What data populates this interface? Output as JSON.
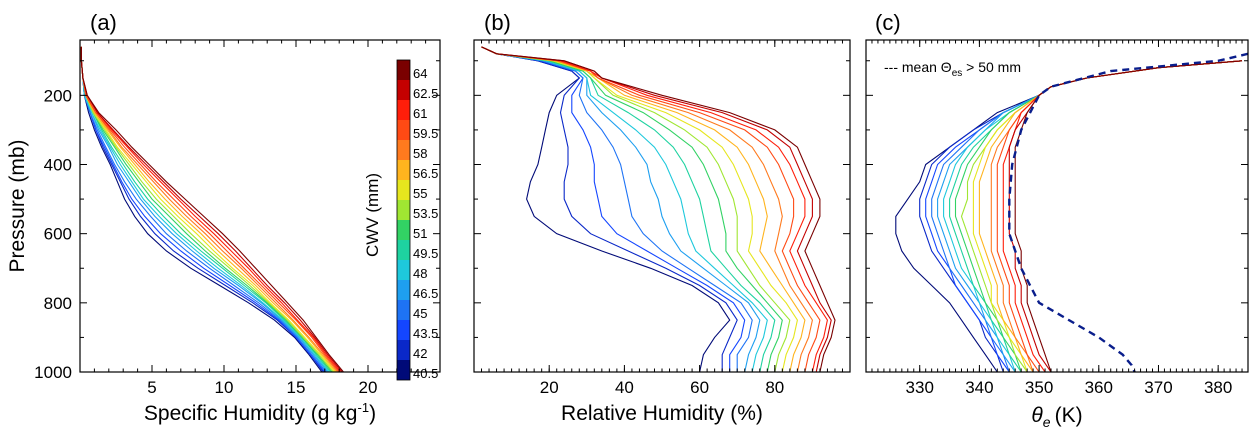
{
  "colorbar": {
    "title": "CWV (mm)",
    "labels": [
      "64",
      "62.5",
      "61",
      "59.5",
      "58",
      "56.5",
      "55",
      "53.5",
      "51",
      "49.5",
      "48",
      "46.5",
      "45",
      "43.5",
      "42",
      "40.5"
    ],
    "colors": [
      "#7a0000",
      "#c40000",
      "#ff1e0a",
      "#ff4a14",
      "#ff7a1e",
      "#ffb41e",
      "#e6e61e",
      "#a0e632",
      "#32d264",
      "#1ed2a0",
      "#1ec8dc",
      "#1e9ff0",
      "#1e73f5",
      "#1446ff",
      "#0a28c8",
      "#000a78"
    ]
  },
  "chart_data": [
    {
      "panel_label": "(a)",
      "type": "line",
      "xlabel": "Specific Humidity (g kg",
      "xlabel_sup": "-1",
      "xlabel_close": ")",
      "ylabel": "Pressure (mb)",
      "xlim": [
        0,
        25
      ],
      "ylim": [
        1000,
        40
      ],
      "y_reversed": true,
      "x_ticks": [
        "5",
        "10",
        "15",
        "20"
      ],
      "x_tick_values": [
        5,
        10,
        15,
        20
      ],
      "y_ticks": [
        "200",
        "400",
        "600",
        "800",
        "1000"
      ],
      "y_tick_values": [
        200,
        400,
        600,
        800,
        1000
      ],
      "pressure_levels": [
        60,
        100,
        150,
        200,
        250,
        300,
        350,
        400,
        450,
        500,
        550,
        600,
        650,
        700,
        750,
        800,
        850,
        900,
        950,
        1000
      ],
      "series_x": [
        [
          0.1,
          0.1,
          0.2,
          0.5,
          1.3,
          2.5,
          3.6,
          4.8,
          6.0,
          7.3,
          8.6,
          9.9,
          11.1,
          12.2,
          13.3,
          14.4,
          15.5,
          16.4,
          17.3,
          18.3
        ],
        [
          0.1,
          0.1,
          0.2,
          0.5,
          1.2,
          2.3,
          3.4,
          4.6,
          5.8,
          7.0,
          8.3,
          9.6,
          10.8,
          11.9,
          13.0,
          14.2,
          15.3,
          16.3,
          17.2,
          18.2
        ],
        [
          0.1,
          0.1,
          0.2,
          0.5,
          1.2,
          2.2,
          3.3,
          4.4,
          5.6,
          6.8,
          8.0,
          9.3,
          10.5,
          11.7,
          12.8,
          14.0,
          15.1,
          16.2,
          17.1,
          18.1
        ],
        [
          0.1,
          0.1,
          0.2,
          0.4,
          1.1,
          2.1,
          3.1,
          4.2,
          5.3,
          6.5,
          7.7,
          9.0,
          10.2,
          11.4,
          12.6,
          13.8,
          15.0,
          16.1,
          17.0,
          18.0
        ],
        [
          0.1,
          0.1,
          0.2,
          0.4,
          1.1,
          2.0,
          2.9,
          4.0,
          5.1,
          6.2,
          7.4,
          8.7,
          9.9,
          11.2,
          12.4,
          13.6,
          14.8,
          15.9,
          16.9,
          17.9
        ],
        [
          0.1,
          0.1,
          0.2,
          0.4,
          1.0,
          1.9,
          2.8,
          3.8,
          4.8,
          5.9,
          7.1,
          8.4,
          9.6,
          10.9,
          12.2,
          13.4,
          14.7,
          15.8,
          16.8,
          17.8
        ],
        [
          0.1,
          0.1,
          0.2,
          0.4,
          1.0,
          1.8,
          2.6,
          3.6,
          4.6,
          5.6,
          6.8,
          8.1,
          9.3,
          10.6,
          12.0,
          13.2,
          14.5,
          15.6,
          16.7,
          17.7
        ],
        [
          0.1,
          0.1,
          0.2,
          0.4,
          0.9,
          1.7,
          2.5,
          3.4,
          4.3,
          5.3,
          6.5,
          7.7,
          9.0,
          10.4,
          11.8,
          13.1,
          14.4,
          15.5,
          16.6,
          17.6
        ],
        [
          0.1,
          0.1,
          0.2,
          0.4,
          0.9,
          1.6,
          2.4,
          3.2,
          4.1,
          5.0,
          6.2,
          7.4,
          8.7,
          10.1,
          11.6,
          13.0,
          14.3,
          15.4,
          16.5,
          17.5
        ],
        [
          0.1,
          0.1,
          0.2,
          0.4,
          0.9,
          1.5,
          2.2,
          3.0,
          3.8,
          4.7,
          5.8,
          7.0,
          8.4,
          9.9,
          11.4,
          12.9,
          14.2,
          15.4,
          16.4,
          17.4
        ],
        [
          0.1,
          0.1,
          0.2,
          0.3,
          0.8,
          1.4,
          2.1,
          2.8,
          3.6,
          4.4,
          5.5,
          6.7,
          8.1,
          9.6,
          11.2,
          12.7,
          14.1,
          15.3,
          16.3,
          17.3
        ],
        [
          0.1,
          0.1,
          0.2,
          0.3,
          0.8,
          1.3,
          2.0,
          2.6,
          3.4,
          4.2,
          5.2,
          6.4,
          7.8,
          9.3,
          11.0,
          12.6,
          14.0,
          15.2,
          16.2,
          17.2
        ],
        [
          0.1,
          0.1,
          0.2,
          0.3,
          0.7,
          1.2,
          1.8,
          2.4,
          3.1,
          3.9,
          4.9,
          6.0,
          7.4,
          9.0,
          10.7,
          12.4,
          13.9,
          15.1,
          16.1,
          17.1
        ],
        [
          0.1,
          0.1,
          0.2,
          0.3,
          0.7,
          1.1,
          1.7,
          2.3,
          2.9,
          3.6,
          4.5,
          5.6,
          7.0,
          8.6,
          10.4,
          12.2,
          13.8,
          15.0,
          16.0,
          17.0
        ],
        [
          0.1,
          0.1,
          0.2,
          0.3,
          0.7,
          1.1,
          1.6,
          2.2,
          2.8,
          3.4,
          4.2,
          5.2,
          6.5,
          8.2,
          10.1,
          12.0,
          13.7,
          15.0,
          16.0,
          16.9
        ],
        [
          0.1,
          0.1,
          0.2,
          0.3,
          0.6,
          1.0,
          1.5,
          2.1,
          2.6,
          3.1,
          3.8,
          4.7,
          6.0,
          7.7,
          9.7,
          11.7,
          13.5,
          14.9,
          15.9,
          16.8
        ]
      ]
    },
    {
      "panel_label": "(b)",
      "type": "line",
      "xlabel": "Relative Humidity (%)",
      "xlim": [
        0,
        100
      ],
      "ylim": [
        1000,
        40
      ],
      "y_reversed": true,
      "x_ticks": [
        "20",
        "40",
        "60",
        "80"
      ],
      "x_tick_values": [
        20,
        40,
        60,
        80
      ],
      "pressure_levels": [
        60,
        80,
        100,
        130,
        150,
        200,
        250,
        300,
        350,
        400,
        450,
        500,
        550,
        600,
        650,
        700,
        750,
        800,
        850,
        900,
        950,
        1000
      ],
      "series_x": [
        [
          2,
          6,
          24,
          32,
          34,
          50,
          68,
          80,
          86,
          88,
          90,
          92,
          92,
          90,
          88,
          90,
          92,
          94,
          96,
          95,
          93,
          92
        ],
        [
          2,
          6,
          24,
          32,
          34,
          48,
          66,
          78,
          84,
          86,
          88,
          90,
          90,
          88,
          86,
          88,
          90,
          92,
          95,
          94,
          92,
          91
        ],
        [
          2,
          6,
          23,
          31,
          34,
          46,
          63,
          75,
          81,
          84,
          86,
          88,
          88,
          86,
          84,
          86,
          88,
          91,
          94,
          93,
          91,
          90
        ],
        [
          2,
          6,
          23,
          31,
          33,
          44,
          60,
          72,
          78,
          81,
          83,
          85,
          85,
          84,
          82,
          84,
          86,
          89,
          92,
          91,
          89,
          88
        ],
        [
          2,
          6,
          22,
          31,
          33,
          42,
          57,
          68,
          74,
          77,
          79,
          81,
          82,
          81,
          80,
          82,
          84,
          87,
          90,
          89,
          87,
          86
        ],
        [
          2,
          6,
          22,
          30,
          33,
          40,
          54,
          64,
          70,
          73,
          75,
          77,
          78,
          77,
          76,
          79,
          82,
          85,
          88,
          87,
          85,
          84
        ],
        [
          2,
          6,
          21,
          30,
          32,
          38,
          51,
          60,
          66,
          69,
          71,
          73,
          74,
          74,
          73,
          76,
          79,
          83,
          86,
          85,
          83,
          82
        ],
        [
          2,
          6,
          21,
          30,
          32,
          37,
          48,
          56,
          62,
          65,
          67,
          69,
          70,
          70,
          70,
          73,
          76,
          80,
          84,
          83,
          81,
          80
        ],
        [
          2,
          6,
          20,
          29,
          31,
          35,
          45,
          52,
          58,
          61,
          63,
          65,
          66,
          67,
          67,
          70,
          74,
          78,
          82,
          81,
          79,
          78
        ],
        [
          2,
          6,
          20,
          29,
          31,
          33,
          41,
          48,
          53,
          56,
          58,
          60,
          61,
          62,
          63,
          67,
          71,
          76,
          80,
          79,
          77,
          76
        ],
        [
          2,
          6,
          19,
          28,
          30,
          31,
          37,
          43,
          48,
          51,
          53,
          55,
          56,
          57,
          59,
          64,
          69,
          74,
          78,
          77,
          75,
          74
        ],
        [
          2,
          6,
          19,
          28,
          30,
          30,
          34,
          39,
          43,
          46,
          47,
          49,
          50,
          52,
          55,
          61,
          67,
          73,
          76,
          75,
          73,
          72
        ],
        [
          2,
          6,
          18,
          27,
          29,
          28,
          30,
          34,
          37,
          39,
          40,
          41,
          42,
          45,
          50,
          57,
          64,
          71,
          74,
          73,
          70,
          70
        ],
        [
          2,
          6,
          18,
          27,
          29,
          26,
          26,
          29,
          31,
          32,
          32,
          33,
          34,
          38,
          46,
          54,
          62,
          69,
          72,
          71,
          68,
          68
        ],
        [
          2,
          6,
          17,
          26,
          28,
          24,
          23,
          24,
          25,
          25,
          24,
          24,
          26,
          31,
          41,
          51,
          60,
          67,
          70,
          68,
          66,
          66
        ],
        [
          2,
          6,
          17,
          26,
          28,
          22,
          20,
          19,
          18,
          17,
          15,
          14,
          16,
          22,
          34,
          47,
          58,
          65,
          68,
          64,
          61,
          60
        ]
      ]
    },
    {
      "panel_label": "(c)",
      "type": "line",
      "xlabel": "θ",
      "xlabel_sub": "e",
      "xlabel_units": "(K)",
      "xlim": [
        321,
        385
      ],
      "ylim": [
        1000,
        40
      ],
      "y_reversed": true,
      "x_ticks": [
        "330",
        "340",
        "350",
        "360",
        "370",
        "380"
      ],
      "x_tick_values": [
        330,
        340,
        350,
        360,
        370,
        380
      ],
      "legend": "--- mean Θ",
      "legend_sub": "es",
      "legend_tail": " > 50 mm",
      "pressure_levels": [
        100,
        120,
        150,
        175,
        200,
        250,
        300,
        350,
        400,
        450,
        500,
        550,
        600,
        650,
        700,
        750,
        800,
        850,
        900,
        950,
        1000
      ],
      "series_x": [
        [
          384,
          370,
          358,
          352,
          350,
          348,
          347,
          346,
          346,
          346,
          346,
          346,
          346,
          347,
          347,
          348,
          348,
          349,
          350,
          351,
          352
        ],
        [
          384,
          370,
          358,
          352,
          350,
          348,
          346,
          345,
          345,
          345,
          345,
          345,
          345,
          346,
          346,
          347,
          347,
          348,
          349,
          350,
          352
        ],
        [
          384,
          370,
          358,
          352,
          350,
          347,
          346,
          345,
          344,
          344,
          344,
          344,
          344,
          344,
          345,
          346,
          346,
          347,
          348,
          349,
          351
        ],
        [
          384,
          370,
          358,
          352,
          350,
          347,
          345,
          344,
          343,
          343,
          343,
          343,
          343,
          343,
          344,
          345,
          345,
          346,
          347,
          348,
          350
        ],
        [
          384,
          370,
          358,
          352,
          350,
          347,
          345,
          343,
          342,
          342,
          342,
          342,
          342,
          342,
          343,
          344,
          344,
          345,
          346,
          348,
          349
        ],
        [
          384,
          370,
          358,
          352,
          350,
          346,
          344,
          342,
          341,
          340,
          340,
          340,
          340,
          341,
          342,
          343,
          343,
          344,
          346,
          347,
          349
        ],
        [
          384,
          370,
          358,
          352,
          350,
          346,
          343,
          341,
          340,
          339,
          339,
          339,
          339,
          340,
          341,
          342,
          342,
          344,
          345,
          347,
          348
        ],
        [
          384,
          370,
          358,
          352,
          350,
          346,
          343,
          341,
          339,
          338,
          338,
          337,
          338,
          339,
          340,
          341,
          342,
          343,
          345,
          346,
          348
        ],
        [
          384,
          370,
          358,
          352,
          350,
          345,
          342,
          340,
          338,
          337,
          336,
          336,
          337,
          338,
          339,
          340,
          341,
          343,
          344,
          346,
          347
        ],
        [
          384,
          370,
          358,
          352,
          350,
          345,
          342,
          339,
          337,
          336,
          335,
          335,
          336,
          337,
          338,
          339,
          341,
          342,
          344,
          345,
          347
        ],
        [
          384,
          370,
          358,
          352,
          350,
          345,
          341,
          338,
          336,
          335,
          334,
          334,
          335,
          336,
          337,
          339,
          340,
          342,
          343,
          345,
          346
        ],
        [
          384,
          370,
          358,
          352,
          350,
          344,
          341,
          338,
          335,
          334,
          333,
          333,
          334,
          335,
          336,
          338,
          340,
          341,
          343,
          344,
          346
        ],
        [
          384,
          370,
          358,
          352,
          350,
          344,
          340,
          337,
          334,
          333,
          332,
          332,
          333,
          334,
          335,
          337,
          339,
          341,
          342,
          344,
          345
        ],
        [
          384,
          370,
          358,
          352,
          350,
          344,
          340,
          336,
          333,
          332,
          331,
          331,
          332,
          333,
          335,
          336,
          338,
          340,
          342,
          343,
          345
        ],
        [
          384,
          370,
          358,
          352,
          350,
          344,
          339,
          335,
          332,
          331,
          330,
          330,
          331,
          332,
          334,
          336,
          338,
          340,
          341,
          343,
          344
        ],
        [
          384,
          370,
          358,
          352,
          350,
          343,
          339,
          335,
          331,
          330,
          328,
          326,
          326,
          327,
          329,
          332,
          335,
          337,
          339,
          341,
          343
        ]
      ],
      "mean_curve": {
        "pressure": [
          80,
          100,
          130,
          175,
          200,
          300,
          400,
          500,
          600,
          700,
          800,
          900,
          950,
          980,
          1000
        ],
        "x": [
          385,
          380,
          362,
          352,
          350,
          347,
          345.5,
          345,
          345,
          347,
          350,
          360,
          364,
          365.5,
          366
        ]
      }
    }
  ]
}
